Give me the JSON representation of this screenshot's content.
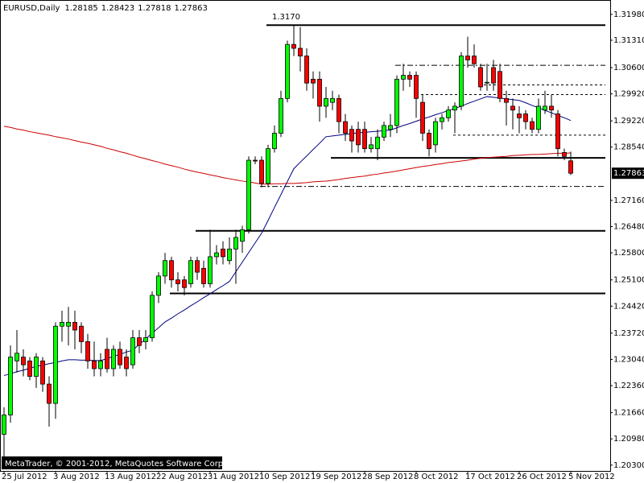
{
  "chart_data": {
    "type": "candlestick",
    "title": "EURUSD,Daily",
    "footer": "MetaTrader, © 2001-2012, MetaQuotes Software Corp.",
    "up_color": "#00ff00",
    "down_color": "#ff0000",
    "categories": [
      "25 Jul 2012",
      null,
      null,
      null,
      null,
      null,
      null,
      null,
      "3 Aug 2012",
      null,
      null,
      null,
      null,
      null,
      null,
      null,
      "13 Aug 2012",
      null,
      null,
      null,
      null,
      null,
      null,
      null,
      "22 Aug 2012",
      null,
      null,
      null,
      null,
      null,
      null,
      null,
      "31 Aug 2012",
      null,
      null,
      null,
      null,
      null,
      null,
      null,
      "10 Sep 2012",
      null,
      null,
      null,
      null,
      null,
      null,
      null,
      "19 Sep 2012",
      null,
      null,
      null,
      null,
      null,
      null,
      null,
      "28 Sep 2012",
      null,
      null,
      null,
      null,
      null,
      null,
      null,
      "8 Oct 2012",
      null,
      null,
      null,
      null,
      null,
      null,
      null,
      "17 Oct 2012",
      null,
      null,
      null,
      null,
      null,
      null,
      null,
      "26 Oct 2012",
      null,
      null,
      null,
      null,
      null,
      null,
      null,
      "5 Nov 2012"
    ],
    "open": [
      1.211,
      1.216,
      1.23,
      1.231,
      1.23,
      1.226,
      1.23,
      1.224,
      1.219,
      1.239,
      1.239,
      1.24,
      1.239,
      1.235,
      1.23,
      1.228,
      1.233,
      1.228,
      1.233,
      1.231,
      1.229,
      1.236,
      1.235,
      1.236,
      1.247,
      1.252,
      1.256,
      1.251,
      1.251,
      1.25,
      1.256,
      1.254,
      1.25,
      1.257,
      1.259,
      1.256,
      1.259,
      1.261,
      1.264,
      1.282,
      1.282,
      1.276,
      1.285,
      1.289,
      1.298,
      1.312,
      1.311,
      1.309,
      1.303,
      1.303,
      1.296,
      1.297,
      1.298,
      1.292,
      1.29,
      1.29,
      1.29,
      1.285,
      1.285,
      1.288,
      1.29,
      1.291,
      1.303,
      1.304,
      1.304,
      1.297,
      1.289,
      1.286,
      1.292,
      1.293,
      1.295,
      1.296,
      1.309,
      1.309,
      1.306,
      1.302,
      1.306,
      1.305,
      1.298,
      1.296,
      1.294,
      1.294,
      1.292,
      1.29,
      1.295,
      1.296,
      1.294,
      1.284,
      1.28185
    ],
    "high": [
      1.218,
      1.234,
      1.238,
      1.233,
      1.231,
      1.232,
      1.231,
      1.226,
      1.24,
      1.243,
      1.244,
      1.243,
      1.24,
      1.237,
      1.235,
      1.232,
      1.236,
      1.234,
      1.235,
      1.233,
      1.238,
      1.238,
      1.238,
      1.248,
      1.253,
      1.258,
      1.257,
      1.253,
      1.252,
      1.257,
      1.257,
      1.256,
      1.264,
      1.26,
      1.261,
      1.262,
      1.264,
      1.265,
      1.283,
      1.283,
      1.283,
      1.286,
      1.291,
      1.3,
      1.313,
      1.317,
      1.3165,
      1.311,
      1.305,
      1.305,
      1.301,
      1.3,
      1.299,
      1.294,
      1.291,
      1.292,
      1.292,
      1.288,
      1.29,
      1.292,
      1.294,
      1.304,
      1.307,
      1.305,
      1.305,
      1.299,
      1.29,
      1.293,
      1.294,
      1.296,
      1.297,
      1.31,
      1.314,
      1.312,
      1.307,
      1.307,
      1.308,
      1.307,
      1.3,
      1.298,
      1.296,
      1.295,
      1.293,
      1.298,
      1.3,
      1.299,
      1.295,
      1.285,
      1.28423
    ],
    "low": [
      1.204,
      1.214,
      1.227,
      1.226,
      1.225,
      1.223,
      1.222,
      1.213,
      1.215,
      1.235,
      1.234,
      1.233,
      1.232,
      1.228,
      1.226,
      1.226,
      1.227,
      1.226,
      1.228,
      1.226,
      1.228,
      1.232,
      1.233,
      1.235,
      1.245,
      1.25,
      1.249,
      1.248,
      1.247,
      1.249,
      1.251,
      1.249,
      1.249,
      1.255,
      1.255,
      1.255,
      1.25,
      1.258,
      1.263,
      1.281,
      1.275,
      1.275,
      1.284,
      1.288,
      1.297,
      1.309,
      1.305,
      1.3,
      1.298,
      1.292,
      1.293,
      1.295,
      1.289,
      1.287,
      1.284,
      1.284,
      1.284,
      1.284,
      1.282,
      1.287,
      1.288,
      1.289,
      1.3,
      1.301,
      1.293,
      1.287,
      1.283,
      1.284,
      1.29,
      1.292,
      1.289,
      1.295,
      1.306,
      1.306,
      1.3,
      1.3,
      1.3,
      1.297,
      1.291,
      1.29,
      1.289,
      1.29,
      1.289,
      1.289,
      1.294,
      1.293,
      1.283,
      1.282,
      1.27818
    ],
    "close": [
      1.216,
      1.231,
      1.232,
      1.229,
      1.226,
      1.231,
      1.224,
      1.219,
      1.239,
      1.24,
      1.24,
      1.238,
      1.235,
      1.23,
      1.228,
      1.23,
      1.228,
      1.233,
      1.229,
      1.228,
      1.236,
      1.234,
      1.236,
      1.247,
      1.252,
      1.256,
      1.251,
      1.25,
      1.249,
      1.256,
      1.253,
      1.25,
      1.257,
      1.258,
      1.257,
      1.259,
      1.262,
      1.264,
      1.282,
      1.2818,
      1.276,
      1.285,
      1.289,
      1.298,
      1.312,
      1.311,
      1.309,
      1.302,
      1.302,
      1.296,
      1.298,
      1.298,
      1.292,
      1.289,
      1.287,
      1.286,
      1.285,
      1.286,
      1.288,
      1.291,
      1.291,
      1.303,
      1.304,
      1.303,
      1.298,
      1.289,
      1.285,
      1.292,
      1.293,
      1.295,
      1.296,
      1.309,
      1.308,
      1.307,
      1.301,
      1.3022,
      1.302,
      1.298,
      1.297,
      1.295,
      1.293,
      1.292,
      1.29,
      1.296,
      1.296,
      1.295,
      1.285,
      1.283,
      1.27863
    ],
    "lines": [
      {
        "color": "#000080",
        "values": [
          1.2262,
          1.2267,
          1.2272,
          1.2276,
          1.2281,
          1.2286,
          1.2289,
          1.2293,
          1.2296,
          1.23,
          1.2303,
          1.2303,
          1.2302,
          1.2302,
          1.2301,
          1.2301,
          1.2306,
          1.2312,
          1.2317,
          1.2323,
          1.2328,
          1.2343,
          1.2357,
          1.2372,
          1.2386,
          1.2401,
          1.2411,
          1.2422,
          1.2432,
          1.2443,
          1.2453,
          1.2464,
          1.2474,
          1.2485,
          1.2495,
          1.2506,
          1.2531,
          1.2556,
          1.2581,
          1.2606,
          1.2631,
          1.2664,
          1.2698,
          1.2731,
          1.2765,
          1.2798,
          1.2815,
          1.2831,
          1.2848,
          1.2864,
          1.2881,
          1.2883,
          1.2885,
          1.2887,
          1.2889,
          1.2891,
          1.2892,
          1.2894,
          1.2895,
          1.2897,
          1.2898,
          1.2904,
          1.291,
          1.2915,
          1.2921,
          1.2927,
          1.2932,
          1.2938,
          1.2943,
          1.2949,
          1.2954,
          1.296,
          1.2967,
          1.2973,
          1.2979,
          1.2985,
          1.2983,
          1.2981,
          1.2979,
          1.2977,
          1.2975,
          1.2969,
          1.2962,
          1.2956,
          1.2949,
          1.2943,
          1.2936,
          1.293,
          1.2923
        ]
      },
      {
        "color": "#cc0000",
        "values": [
          1.2908,
          1.2905,
          1.2901,
          1.2898,
          1.2894,
          1.2891,
          1.2888,
          1.2885,
          1.2881,
          1.2878,
          1.2875,
          1.2871,
          1.2867,
          1.2864,
          1.286,
          1.2856,
          1.2851,
          1.2847,
          1.2842,
          1.2838,
          1.2833,
          1.2828,
          1.2824,
          1.2819,
          1.2815,
          1.281,
          1.2806,
          1.2802,
          1.2797,
          1.2793,
          1.2789,
          1.2786,
          1.2782,
          1.2779,
          1.2775,
          1.2772,
          1.2769,
          1.2766,
          1.2764,
          1.2761,
          1.2758,
          1.2758,
          1.2759,
          1.2759,
          1.276,
          1.276,
          1.2761,
          1.2762,
          1.2764,
          1.2765,
          1.2766,
          1.2768,
          1.277,
          1.2773,
          1.2775,
          1.2777,
          1.2779,
          1.2782,
          1.2784,
          1.2787,
          1.2789,
          1.2792,
          1.2795,
          1.2798,
          1.2801,
          1.2804,
          1.2806,
          1.2809,
          1.2811,
          1.2814,
          1.2816,
          1.2818,
          1.282,
          1.2823,
          1.2825,
          1.2827,
          1.2828,
          1.2829,
          1.283,
          1.2832,
          1.2833,
          1.2834,
          1.2835,
          1.2835,
          1.2836,
          1.2837,
          1.2838,
          1.2838,
          1.2839
        ]
      }
    ],
    "levels": [
      {
        "value": 1.317,
        "value_label": "1.3170",
        "start_index": 41,
        "style": "solid"
      },
      {
        "value": 1.2826,
        "start_index": 51,
        "style": "solid"
      },
      {
        "value": 1.2637,
        "start_index": 30,
        "style": "solid"
      },
      {
        "value": 1.2475,
        "start_index": 26,
        "style": "solid"
      },
      {
        "value": 1.3066,
        "start_index": 61,
        "style": "dashdot"
      },
      {
        "value": 1.3015,
        "start_index": 74,
        "style": "dashed"
      },
      {
        "value": 1.299,
        "start_index": 65,
        "style": "dashed"
      },
      {
        "value": 1.2885,
        "start_index": 70,
        "style": "dashed"
      },
      {
        "value": 1.2752,
        "start_index": 40,
        "style": "dashdot"
      }
    ],
    "ylim": [
      1.2015,
      1.3231
    ],
    "yticks": [
      {
        "value": 1.3198,
        "label": "1.31980"
      },
      {
        "value": 1.3131,
        "label": "1.31310"
      },
      {
        "value": 1.306,
        "label": "1.30600"
      },
      {
        "value": 1.2992,
        "label": "1.29920"
      },
      {
        "value": 1.2922,
        "label": "1.29220"
      },
      {
        "value": 1.2854,
        "label": "1.28540"
      },
      {
        "value": 1.2716,
        "label": "1.27160"
      },
      {
        "value": 1.2648,
        "label": "1.26480"
      },
      {
        "value": 1.258,
        "label": "1.25800"
      },
      {
        "value": 1.251,
        "label": "1.25100"
      },
      {
        "value": 1.2442,
        "label": "1.24420"
      },
      {
        "value": 1.2372,
        "label": "1.23720"
      },
      {
        "value": 1.2304,
        "label": "1.23040"
      },
      {
        "value": 1.2236,
        "label": "1.22360"
      },
      {
        "value": 1.2166,
        "label": "1.21660"
      },
      {
        "value": 1.2098,
        "label": "1.20980"
      },
      {
        "value": 1.203,
        "label": "1.20300"
      }
    ],
    "grid": false
  }
}
